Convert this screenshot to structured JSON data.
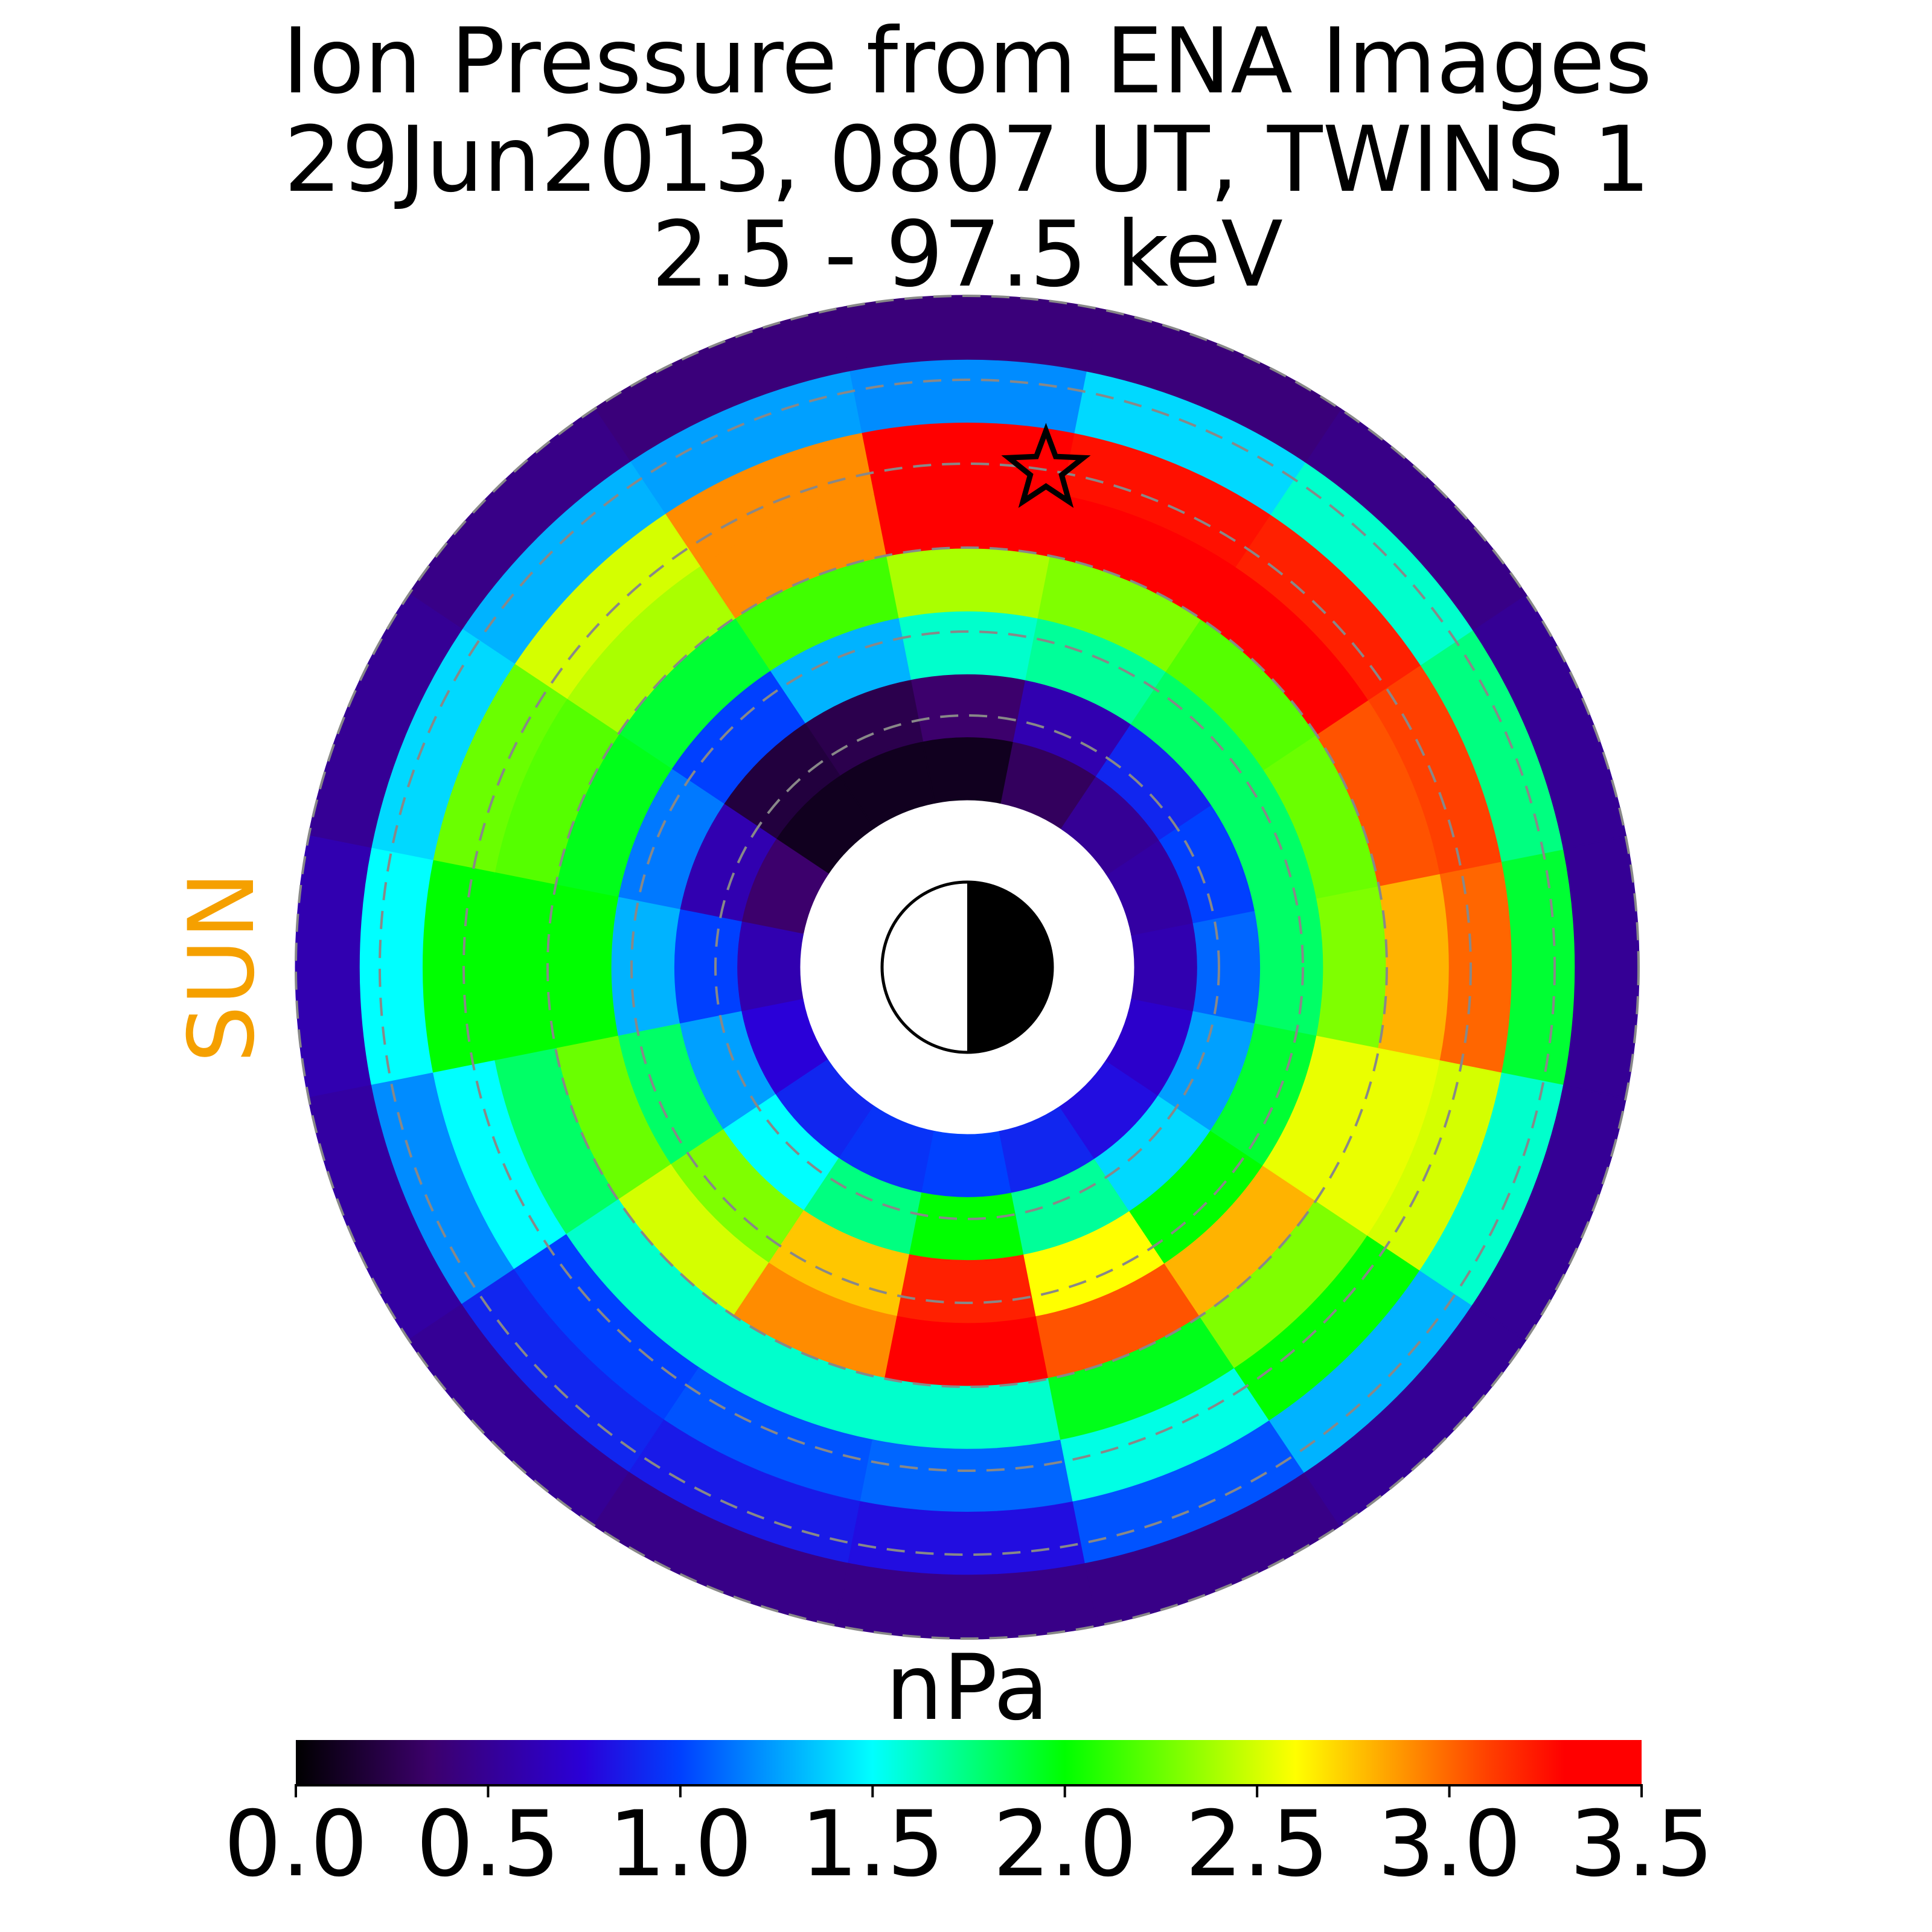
{
  "chart_data": {
    "type": "polar_heatmap",
    "title": [
      "Ion Pressure from  ENA Images",
      "29Jun2013, 0807 UT,  TWINS 1",
      "2.5 - 97.5 keV"
    ],
    "sun_label": "SUN",
    "colorbar_label": "nPa",
    "r_edges": [
      2,
      2.75,
      3.5,
      4.25,
      5,
      5.75,
      6.5,
      7.25,
      8
    ],
    "theta": [
      0,
      22.5,
      45,
      67.5,
      90,
      112.5,
      135,
      157.5,
      180,
      202.5,
      225,
      247.5,
      270,
      292.5,
      315,
      337.5
    ],
    "theta_width": 22.5,
    "rgrid": [
      3,
      4,
      5,
      6,
      7,
      8
    ],
    "values": [
      [
        0.6,
        0.55,
        0.5,
        0.3,
        0.1,
        0.1,
        0.1,
        0.35,
        0.6,
        0.75,
        0.9,
        0.95,
        1.0,
        0.9,
        0.8,
        0.7
      ],
      [
        1.1,
        1.0,
        0.9,
        0.6,
        0.35,
        0.25,
        0.2,
        0.6,
        1.0,
        1.25,
        1.5,
        1.75,
        2.0,
        1.7,
        1.4,
        1.25
      ],
      [
        1.8,
        1.8,
        1.8,
        1.7,
        1.6,
        1.3,
        1.0,
        1.15,
        1.3,
        1.8,
        2.3,
        2.75,
        3.2,
        2.6,
        2.0,
        1.9
      ],
      [
        2.3,
        2.25,
        2.2,
        2.3,
        2.4,
        2.15,
        1.9,
        1.95,
        2.0,
        2.25,
        2.5,
        2.9,
        3.3,
        3.05,
        2.8,
        2.55
      ],
      [
        2.8,
        3.05,
        3.3,
        3.35,
        3.4,
        2.9,
        2.4,
        2.2,
        2.0,
        1.8,
        1.6,
        1.6,
        1.6,
        1.95,
        2.3,
        2.55
      ],
      [
        3.0,
        3.1,
        3.2,
        3.25,
        3.3,
        2.9,
        2.5,
        2.25,
        2.0,
        1.5,
        1.0,
        1.05,
        1.1,
        1.55,
        2.0,
        2.5
      ],
      [
        1.9,
        1.75,
        1.6,
        1.4,
        1.2,
        1.25,
        1.3,
        1.4,
        1.5,
        1.2,
        0.9,
        0.85,
        0.8,
        1.05,
        1.3,
        1.6
      ],
      [
        0.5,
        0.5,
        0.45,
        0.4,
        0.4,
        0.4,
        0.45,
        0.5,
        0.6,
        0.55,
        0.5,
        0.45,
        0.45,
        0.45,
        0.5,
        0.5
      ]
    ],
    "star": {
      "r": 6.0,
      "theta": 81
    },
    "clim": [
      0,
      3.5
    ],
    "cticks": [
      {
        "value": 0,
        "label": "0.0"
      },
      0.5,
      {
        "value": 1,
        "label": "1.0"
      },
      1.5,
      {
        "value": 2,
        "label": "2.0"
      },
      2.5,
      {
        "value": 3,
        "label": "3.0"
      },
      3.5
    ],
    "colormap": [
      {
        "value": 0,
        "color": "#000000"
      },
      {
        "value": 0.35,
        "color": "#3c006c"
      },
      {
        "value": 0.75,
        "color": "#2a00d8"
      },
      {
        "value": 1.0,
        "color": "#0040ff"
      },
      {
        "value": 1.5,
        "color": "#00ffff"
      },
      {
        "value": 2.0,
        "color": "#00ff00"
      },
      {
        "value": 2.6,
        "color": "#ffff00"
      },
      {
        "value": 3.1,
        "color": "#ff4000"
      },
      {
        "value": 3.3,
        "color": "#ff0000"
      },
      {
        "value": 3.5,
        "color": "#ff0000"
      }
    ],
    "sun_color": "#f5a000",
    "grid_color": "#888888"
  }
}
